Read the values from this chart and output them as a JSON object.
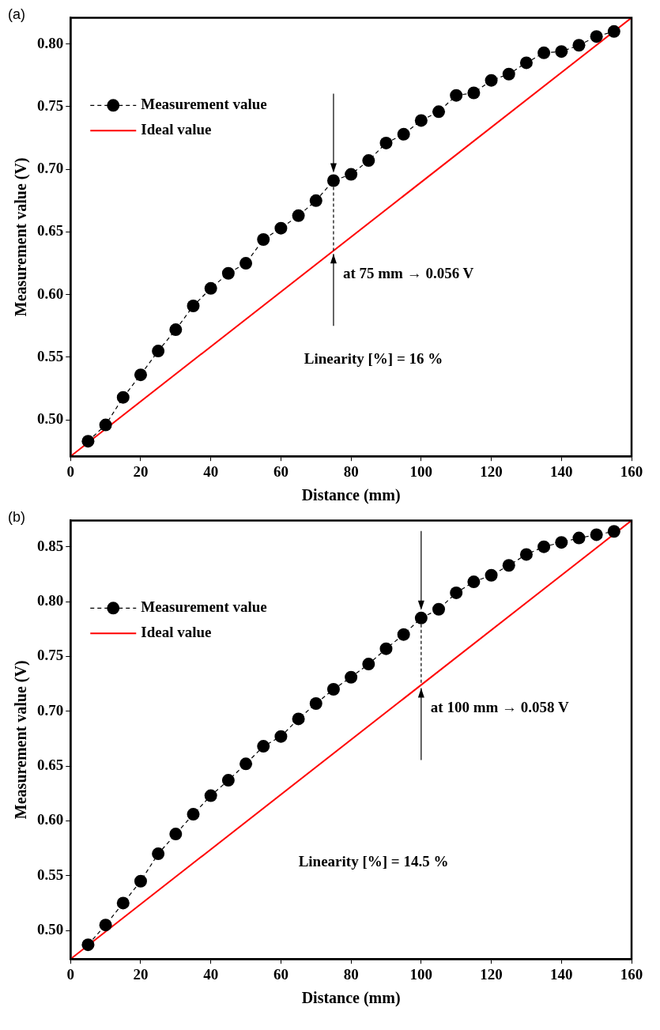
{
  "chart_data": [
    {
      "type": "line",
      "title": "(a)",
      "xlabel": "Distance (mm)",
      "ylabel": "Measurement value (V)",
      "xlim": [
        0,
        160
      ],
      "xticks": [
        0,
        20,
        40,
        60,
        80,
        100,
        120,
        140,
        160
      ],
      "ylim": [
        0.471,
        0.821
      ],
      "yticks": [
        {
          "value": 0.5,
          "label": "0.50"
        },
        {
          "value": 0.55,
          "label": "0.55"
        },
        {
          "value": 0.6,
          "label": "0.60"
        },
        {
          "value": 0.65,
          "label": "0.65"
        },
        {
          "value": 0.7,
          "label": "0.70"
        },
        {
          "value": 0.75,
          "label": "0.75"
        },
        {
          "value": 0.8,
          "label": "0.80"
        }
      ],
      "grid": false,
      "legend": "top left",
      "series": [
        {
          "name": "Measurement value",
          "type": "line",
          "color": "#000000",
          "marker": "circle",
          "line_style": "dashed",
          "x": [
            5,
            10,
            15,
            20,
            25,
            30,
            35,
            40,
            45,
            50,
            55,
            60,
            65,
            70,
            75,
            80,
            85,
            90,
            95,
            100,
            105,
            110,
            115,
            120,
            125,
            130,
            135,
            140,
            145,
            150,
            155
          ],
          "values": [
            0.483,
            0.496,
            0.518,
            0.536,
            0.555,
            0.572,
            0.591,
            0.605,
            0.617,
            0.625,
            0.644,
            0.653,
            0.663,
            0.675,
            0.691,
            0.696,
            0.707,
            0.721,
            0.728,
            0.739,
            0.746,
            0.759,
            0.761,
            0.771,
            0.776,
            0.785,
            0.793,
            0.794,
            0.799,
            0.806,
            0.81
          ]
        },
        {
          "name": "Ideal value",
          "type": "line",
          "color": "#ff0000",
          "marker": "none",
          "line_style": "solid",
          "x": [
            0,
            160
          ],
          "values": [
            0.471,
            0.821
          ]
        }
      ],
      "annotations": [
        {
          "text": "at 75 mm → 0.056 V",
          "x": 75,
          "y": 0.635
        },
        "Linearity [%] = 16 %"
      ]
    },
    {
      "type": "line",
      "title": "(b)",
      "xlabel": "Distance (mm)",
      "ylabel": "Measurement value (V)",
      "xlim": [
        0,
        160
      ],
      "xticks": [
        0,
        20,
        40,
        60,
        80,
        100,
        120,
        140,
        160
      ],
      "ylim": [
        0.474,
        0.874
      ],
      "yticks": [
        {
          "value": 0.5,
          "label": "0.50"
        },
        {
          "value": 0.55,
          "label": "0.55"
        },
        {
          "value": 0.6,
          "label": "0.60"
        },
        {
          "value": 0.65,
          "label": "0.65"
        },
        {
          "value": 0.7,
          "label": "0.70"
        },
        {
          "value": 0.75,
          "label": "0.75"
        },
        {
          "value": 0.8,
          "label": "0.80"
        },
        {
          "value": 0.85,
          "label": "0.85"
        }
      ],
      "grid": false,
      "legend": "top left",
      "series": [
        {
          "name": "Measurement value",
          "type": "line",
          "color": "#000000",
          "marker": "circle",
          "line_style": "dashed",
          "x": [
            5,
            10,
            15,
            20,
            25,
            30,
            35,
            40,
            45,
            50,
            55,
            60,
            65,
            70,
            75,
            80,
            85,
            90,
            95,
            100,
            105,
            110,
            115,
            120,
            125,
            130,
            135,
            140,
            145,
            150,
            155
          ],
          "values": [
            0.487,
            0.505,
            0.525,
            0.545,
            0.57,
            0.588,
            0.606,
            0.623,
            0.637,
            0.652,
            0.668,
            0.677,
            0.693,
            0.707,
            0.72,
            0.731,
            0.743,
            0.757,
            0.77,
            0.785,
            0.793,
            0.808,
            0.818,
            0.824,
            0.833,
            0.843,
            0.85,
            0.854,
            0.858,
            0.861,
            0.864
          ]
        },
        {
          "name": "Ideal value",
          "type": "line",
          "color": "#ff0000",
          "marker": "none",
          "line_style": "solid",
          "x": [
            0,
            160
          ],
          "values": [
            0.474,
            0.874
          ]
        }
      ],
      "annotations": [
        {
          "text": "at 100 mm → 0.058 V",
          "x": 100,
          "y": 0.724
        },
        "Linearity [%] = 14.5 %"
      ]
    }
  ]
}
